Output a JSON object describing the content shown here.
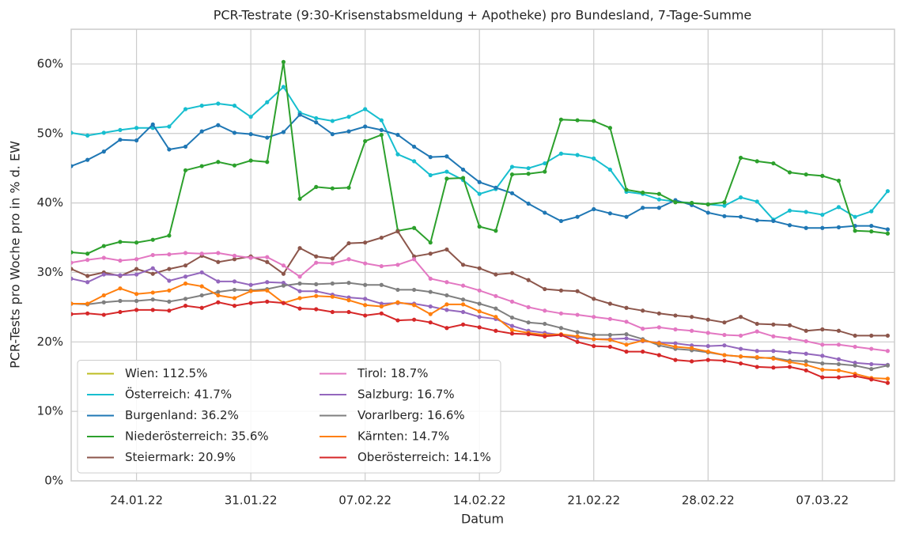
{
  "chart_data": {
    "type": "line",
    "title": "PCR-Testrate (9:30-Krisenstabsmeldung + Apotheke) pro Bundesland, 7-Tage-Summe",
    "xlabel": "Datum",
    "ylabel": "PCR-Tests pro Woche pro in % d. EW",
    "x": [
      "2022-01-20",
      "2022-01-21",
      "2022-01-22",
      "2022-01-23",
      "2022-01-24",
      "2022-01-25",
      "2022-01-26",
      "2022-01-27",
      "2022-01-28",
      "2022-01-29",
      "2022-01-30",
      "2022-01-31",
      "2022-02-01",
      "2022-02-02",
      "2022-02-03",
      "2022-02-04",
      "2022-02-05",
      "2022-02-06",
      "2022-02-07",
      "2022-02-08",
      "2022-02-09",
      "2022-02-10",
      "2022-02-11",
      "2022-02-12",
      "2022-02-13",
      "2022-02-14",
      "2022-02-15",
      "2022-02-16",
      "2022-02-17",
      "2022-02-18",
      "2022-02-19",
      "2022-02-20",
      "2022-02-21",
      "2022-02-22",
      "2022-02-23",
      "2022-02-24",
      "2022-02-25",
      "2022-02-26",
      "2022-02-27",
      "2022-02-28",
      "2022-03-01",
      "2022-03-02",
      "2022-03-03",
      "2022-03-04",
      "2022-03-05",
      "2022-03-06",
      "2022-03-07",
      "2022-03-08",
      "2022-03-09",
      "2022-03-10",
      "2022-03-11"
    ],
    "xlim": [
      "2022-01-20",
      "2022-03-11T10:00Z"
    ],
    "xticks": [
      {
        "value": "2022-01-24",
        "label": "24.01.22"
      },
      {
        "value": "2022-01-31",
        "label": "31.01.22"
      },
      {
        "value": "2022-02-07",
        "label": "07.02.22"
      },
      {
        "value": "2022-02-14",
        "label": "14.02.22"
      },
      {
        "value": "2022-02-21",
        "label": "21.02.22"
      },
      {
        "value": "2022-02-28",
        "label": "28.02.22"
      },
      {
        "value": "2022-03-07",
        "label": "07.03.22"
      }
    ],
    "ylim": [
      0,
      65
    ],
    "yticks": [
      {
        "value": 0,
        "label": "0%"
      },
      {
        "value": 10,
        "label": "10%"
      },
      {
        "value": 20,
        "label": "20%"
      },
      {
        "value": 30,
        "label": "30%"
      },
      {
        "value": 40,
        "label": "40%"
      },
      {
        "value": 50,
        "label": "50%"
      },
      {
        "value": 60,
        "label": "60%"
      }
    ],
    "grid": true,
    "legend": "lower left",
    "series": [
      {
        "name": "Wien: 112.5%",
        "color": "#bcbd22",
        "values": [
          null,
          null,
          null,
          null,
          null,
          null,
          null,
          null,
          null,
          null,
          null,
          null,
          null,
          null,
          null,
          null,
          null,
          null,
          null,
          null,
          null,
          null,
          null,
          null,
          null,
          null,
          null,
          null,
          null,
          null,
          null,
          null,
          null,
          null,
          null,
          null,
          null,
          null,
          null,
          null,
          null,
          null,
          null,
          null,
          null,
          null,
          null,
          null,
          null,
          null,
          null
        ]
      },
      {
        "name": "Österreich: 41.7%",
        "color": "#17becf",
        "values": [
          50.1,
          49.7,
          50.1,
          50.5,
          50.8,
          50.8,
          51.0,
          53.5,
          54.0,
          54.3,
          54.0,
          52.4,
          54.5,
          56.7,
          53.0,
          52.2,
          51.8,
          52.4,
          53.5,
          51.9,
          47.0,
          46.0,
          44.0,
          44.5,
          43.3,
          41.3,
          42.0,
          45.2,
          45.0,
          45.7,
          47.1,
          46.9,
          46.4,
          44.8,
          41.6,
          41.3,
          40.5,
          40.2,
          40.0,
          39.8,
          39.6,
          40.8,
          40.2,
          37.6,
          38.9,
          38.7,
          38.3,
          39.4,
          38.0,
          38.8,
          41.7
        ]
      },
      {
        "name": "Burgenland: 36.2%",
        "color": "#1f77b4",
        "values": [
          45.3,
          46.2,
          47.4,
          49.1,
          49.0,
          51.3,
          47.7,
          48.1,
          50.3,
          51.2,
          50.1,
          49.9,
          49.4,
          50.2,
          52.7,
          51.6,
          49.9,
          50.3,
          51.0,
          50.5,
          49.8,
          48.1,
          46.6,
          46.7,
          44.8,
          43.0,
          42.2,
          41.4,
          39.9,
          38.6,
          37.4,
          38.0,
          39.1,
          38.5,
          38.0,
          39.3,
          39.3,
          40.4,
          39.7,
          38.6,
          38.1,
          38.0,
          37.5,
          37.4,
          36.8,
          36.4,
          36.4,
          36.5,
          36.7,
          36.7,
          36.2
        ]
      },
      {
        "name": "Niederösterreich: 35.6%",
        "color": "#2ca02c",
        "values": [
          32.9,
          32.7,
          33.8,
          34.4,
          34.3,
          34.7,
          35.3,
          44.7,
          45.3,
          45.9,
          45.4,
          46.1,
          45.9,
          60.3,
          40.6,
          42.3,
          42.1,
          42.2,
          48.9,
          49.8,
          36.0,
          36.4,
          34.3,
          43.5,
          43.6,
          36.6,
          36.0,
          44.1,
          44.2,
          44.5,
          52.0,
          51.9,
          51.8,
          50.8,
          41.9,
          41.5,
          41.3,
          40.1,
          40.0,
          39.8,
          40.1,
          46.5,
          46.0,
          45.7,
          44.4,
          44.1,
          43.9,
          43.2,
          36.0,
          35.9,
          35.6
        ]
      },
      {
        "name": "Steiermark: 20.9%",
        "color": "#8c564b",
        "values": [
          30.5,
          29.5,
          30.0,
          29.5,
          30.5,
          29.8,
          30.5,
          31.0,
          32.4,
          31.5,
          31.9,
          32.3,
          31.5,
          29.8,
          33.5,
          32.3,
          32.0,
          34.2,
          34.3,
          35.0,
          35.9,
          32.3,
          32.7,
          33.3,
          31.1,
          30.6,
          29.7,
          29.9,
          28.9,
          27.6,
          27.4,
          27.3,
          26.2,
          25.5,
          24.9,
          24.5,
          24.1,
          23.8,
          23.6,
          23.2,
          22.8,
          23.6,
          22.6,
          22.5,
          22.4,
          21.6,
          21.8,
          21.6,
          20.9,
          20.9,
          20.9
        ]
      },
      {
        "name": "Tirol: 18.7%",
        "color": "#e377c2",
        "values": [
          31.4,
          31.8,
          32.1,
          31.7,
          31.9,
          32.5,
          32.6,
          32.8,
          32.7,
          32.8,
          32.4,
          32.1,
          32.2,
          31.0,
          29.4,
          31.4,
          31.3,
          31.9,
          31.3,
          30.9,
          31.1,
          31.9,
          29.1,
          28.6,
          28.1,
          27.4,
          26.6,
          25.8,
          25.0,
          24.5,
          24.1,
          23.9,
          23.6,
          23.3,
          22.9,
          21.9,
          22.1,
          21.8,
          21.6,
          21.3,
          21.0,
          20.9,
          21.5,
          20.8,
          20.5,
          20.1,
          19.6,
          19.6,
          19.3,
          19.0,
          18.7
        ]
      },
      {
        "name": "Salzburg: 16.7%",
        "color": "#9467bd",
        "values": [
          29.1,
          28.6,
          29.7,
          29.6,
          29.7,
          30.6,
          28.8,
          29.4,
          30.0,
          28.7,
          28.7,
          28.2,
          28.6,
          28.5,
          27.3,
          27.3,
          26.8,
          26.4,
          26.2,
          25.5,
          25.6,
          25.5,
          25.1,
          24.6,
          24.3,
          23.6,
          23.3,
          22.3,
          21.6,
          21.3,
          21.0,
          20.6,
          20.4,
          20.4,
          20.5,
          20.1,
          19.9,
          19.8,
          19.5,
          19.4,
          19.5,
          19.0,
          18.7,
          18.7,
          18.5,
          18.3,
          18.0,
          17.5,
          17.0,
          16.8,
          16.7
        ]
      },
      {
        "name": "Vorarlberg: 16.6%",
        "color": "#7f7f7f",
        "values": [
          25.5,
          25.4,
          25.7,
          25.9,
          25.9,
          26.1,
          25.8,
          26.2,
          26.7,
          27.2,
          27.5,
          27.4,
          27.6,
          28.1,
          28.4,
          28.3,
          28.4,
          28.5,
          28.2,
          28.2,
          27.5,
          27.5,
          27.2,
          26.7,
          26.1,
          25.5,
          24.8,
          23.5,
          22.8,
          22.6,
          22.0,
          21.4,
          21.0,
          21.0,
          21.1,
          20.4,
          19.5,
          19.0,
          18.8,
          18.5,
          18.1,
          17.9,
          17.7,
          17.7,
          17.3,
          17.2,
          16.9,
          16.8,
          16.6,
          16.1,
          16.6
        ]
      },
      {
        "name": "Kärnten: 14.7%",
        "color": "#ff7f0e",
        "values": [
          25.5,
          25.5,
          26.7,
          27.7,
          26.9,
          27.1,
          27.4,
          28.4,
          28.0,
          26.7,
          26.3,
          27.3,
          27.4,
          25.6,
          26.3,
          26.6,
          26.5,
          26.0,
          25.3,
          25.1,
          25.7,
          25.3,
          24.0,
          25.4,
          25.4,
          24.4,
          23.6,
          21.7,
          21.3,
          21.0,
          21.1,
          20.8,
          20.4,
          20.3,
          19.6,
          20.2,
          19.8,
          19.3,
          19.1,
          18.6,
          18.1,
          17.9,
          17.8,
          17.6,
          17.1,
          16.7,
          16.0,
          15.9,
          15.4,
          14.8,
          14.7
        ]
      },
      {
        "name": "Oberösterreich: 14.1%",
        "color": "#d62728",
        "values": [
          24.0,
          24.1,
          23.9,
          24.3,
          24.6,
          24.6,
          24.5,
          25.2,
          24.9,
          25.7,
          25.2,
          25.6,
          25.8,
          25.6,
          24.8,
          24.7,
          24.3,
          24.3,
          23.8,
          24.1,
          23.1,
          23.2,
          22.8,
          22.0,
          22.5,
          22.1,
          21.6,
          21.2,
          21.1,
          20.8,
          21.0,
          20.0,
          19.4,
          19.3,
          18.6,
          18.6,
          18.1,
          17.4,
          17.2,
          17.4,
          17.3,
          16.9,
          16.4,
          16.3,
          16.4,
          15.9,
          14.9,
          14.9,
          15.1,
          14.6,
          14.1
        ]
      }
    ]
  }
}
